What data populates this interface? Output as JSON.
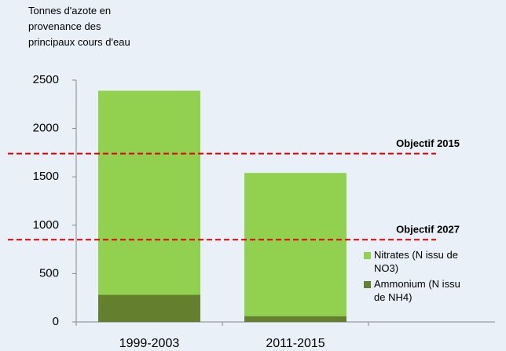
{
  "chart_data": {
    "type": "stacked_bar",
    "y_label": "Tonnes d'azote en provenance des principaux cours d'eau",
    "categories": [
      "1999-2003",
      "2011-2015"
    ],
    "series": [
      {
        "name": "Ammonium (N issu de NH4)",
        "color": "#64802f",
        "values": [
          280,
          60
        ]
      },
      {
        "name": "Nitrates (N issu de NO3)",
        "color": "#92d050",
        "values": [
          2110,
          1480
        ]
      }
    ],
    "ylim": [
      0,
      2500
    ],
    "yticks": [
      0,
      500,
      1000,
      1500,
      2000,
      2500
    ],
    "annotations": [
      {
        "label": "Objectif 2015",
        "value": 1740,
        "color": "#e00000"
      },
      {
        "label": "Objectif 2027",
        "value": 850,
        "color": "#e00000"
      }
    ]
  }
}
